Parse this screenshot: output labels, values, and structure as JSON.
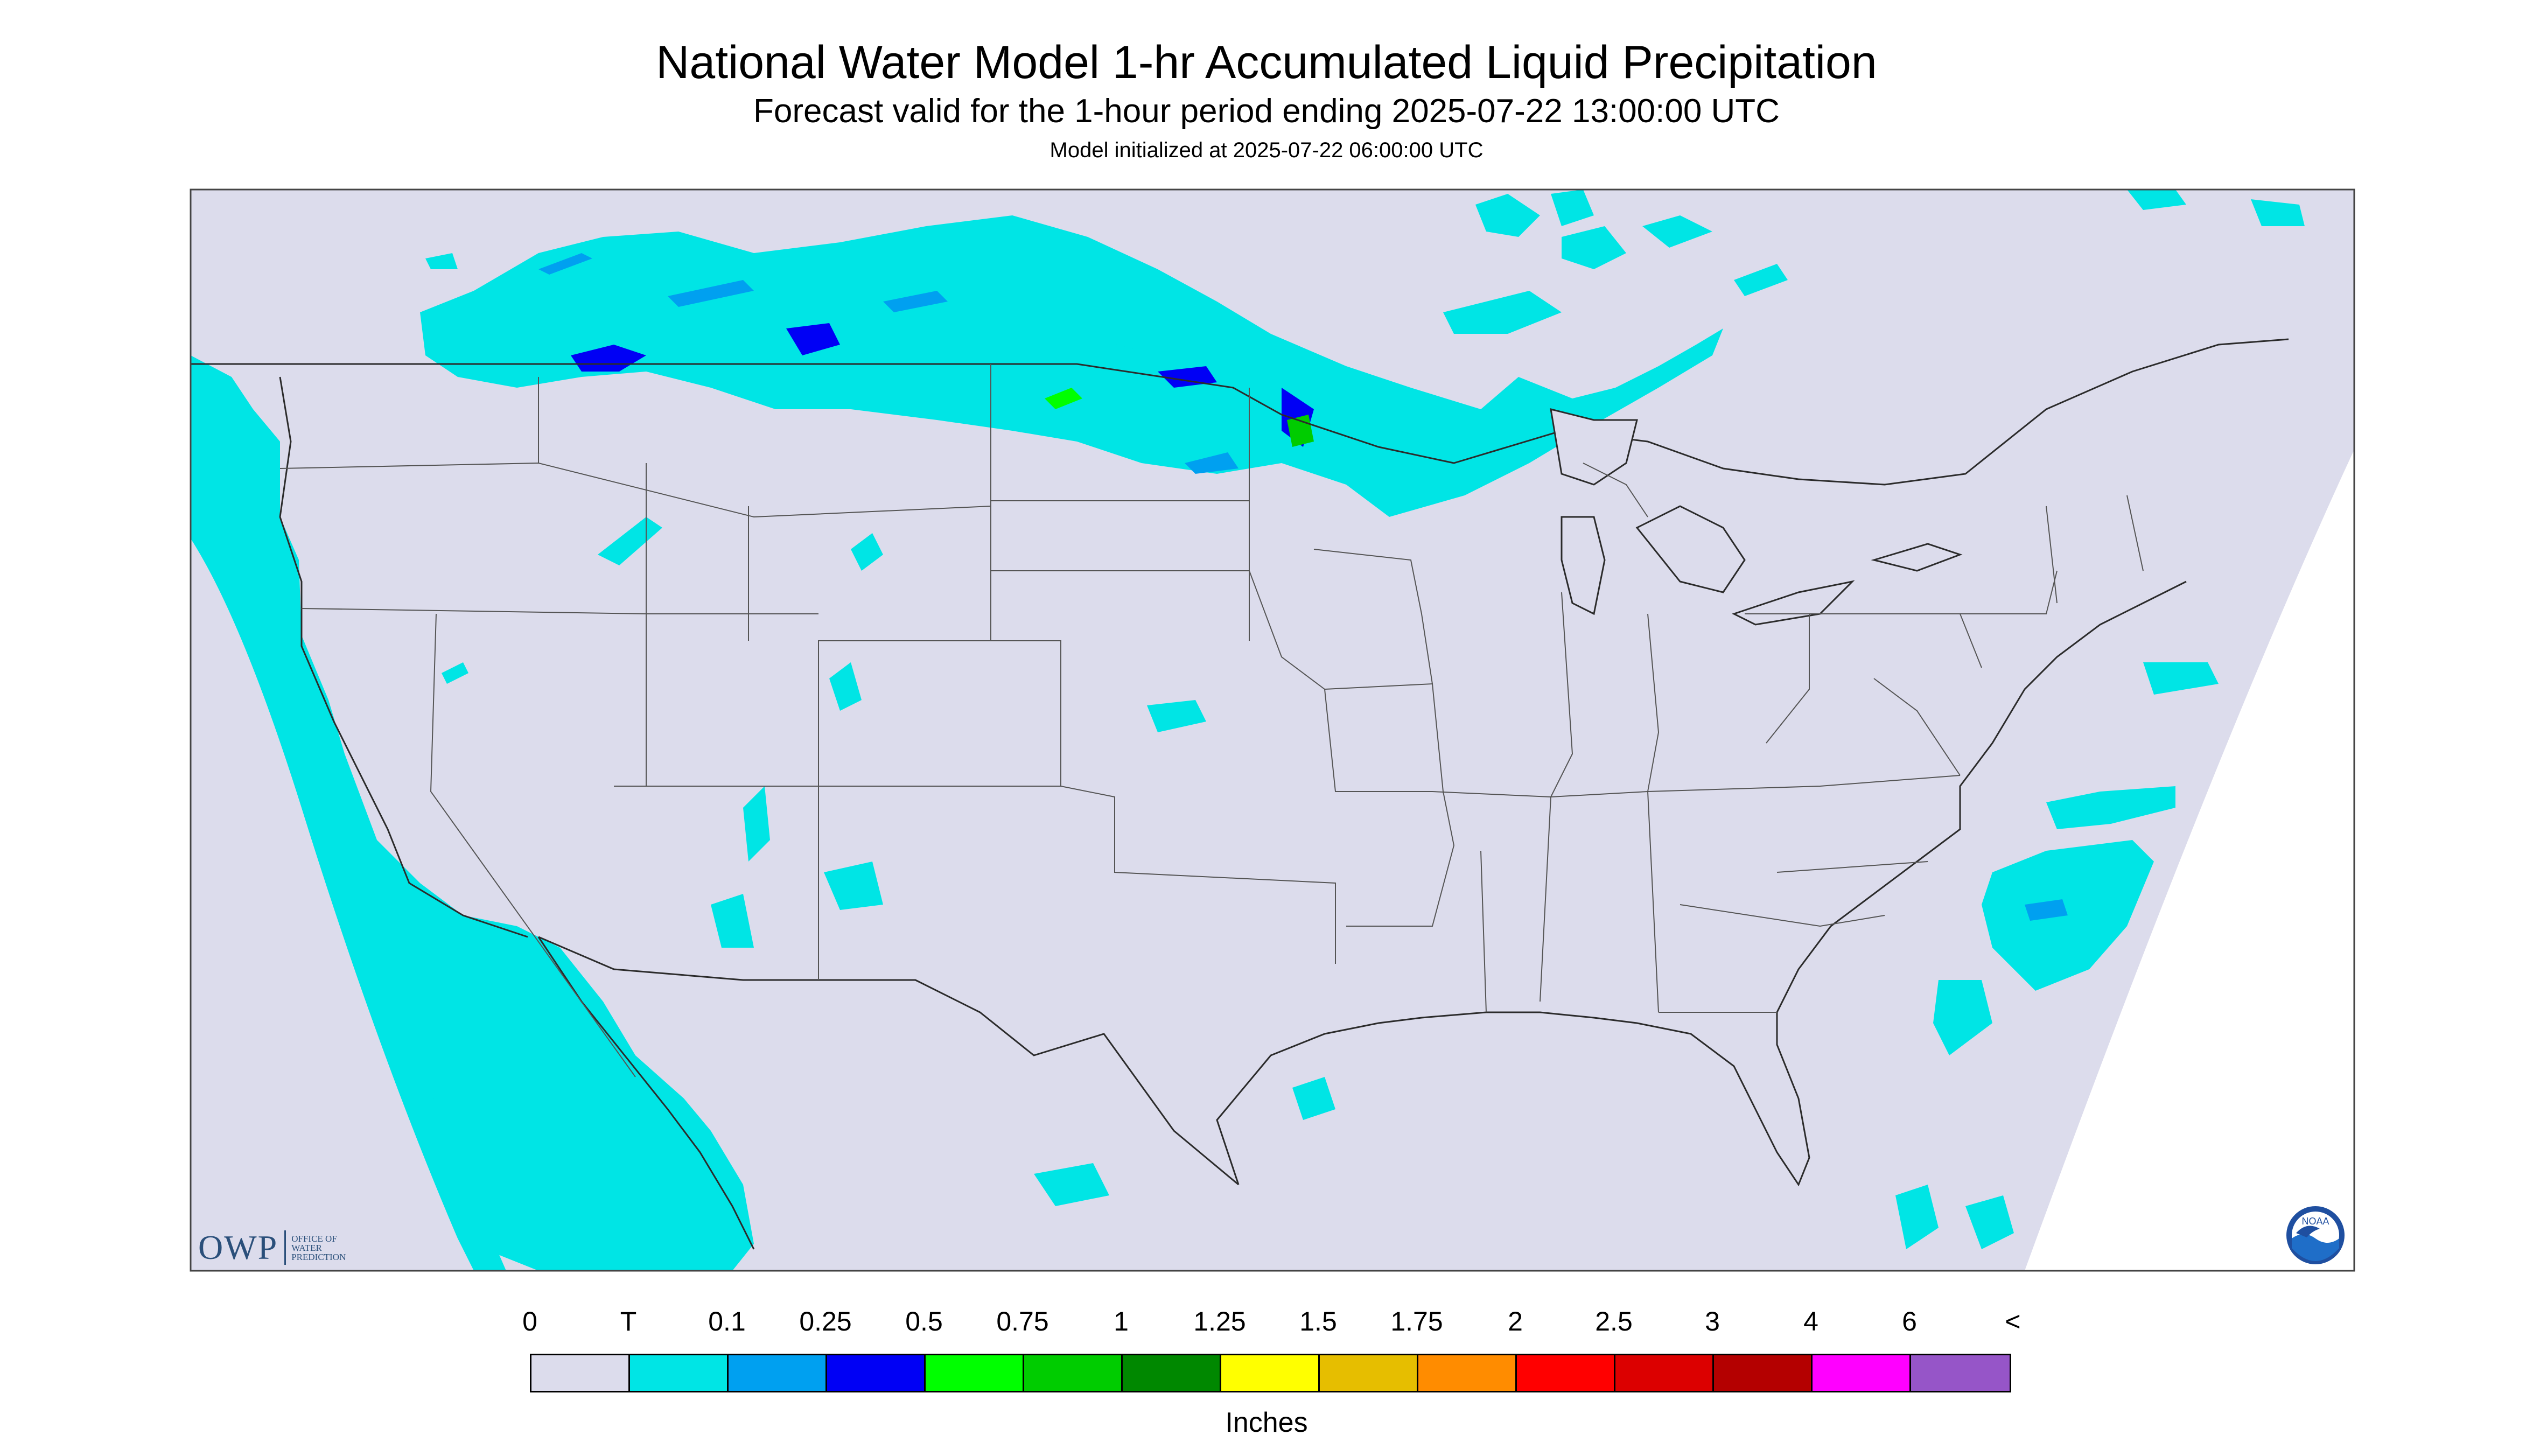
{
  "header": {
    "title": "National Water Model 1-hr Accumulated Liquid Precipitation",
    "subtitle": "Forecast valid for the 1-hour period ending 2025-07-22 13:00:00 UTC",
    "init": "Model initialized at 2025-07-22 06:00:00 UTC"
  },
  "colors": {
    "background_land": "#dcdcec",
    "trace": "#00e5e5",
    "page": "#ffffff",
    "boundary": "#2b2b2b"
  },
  "logos": {
    "owp_letters": "OWP",
    "owp_line1": "OFFICE OF",
    "owp_line2": "WATER",
    "owp_line3": "PREDICTION",
    "noaa_icon": "noaa-logo-icon",
    "noaa_text": "NOAA"
  },
  "legend": {
    "labels": [
      "0",
      "T",
      "0.1",
      "0.25",
      "0.5",
      "0.75",
      "1",
      "1.25",
      "1.5",
      "1.75",
      "2",
      "2.5",
      "3",
      "4",
      "6",
      "<"
    ],
    "colors": [
      "#dcdcec",
      "#00e5e5",
      "#00a0f0",
      "#0000f5",
      "#00ff00",
      "#00cc00",
      "#008800",
      "#ffff00",
      "#e6be00",
      "#ff8c00",
      "#ff0000",
      "#dc0000",
      "#b40000",
      "#ff00ff",
      "#9655c8"
    ],
    "units": "Inches"
  }
}
